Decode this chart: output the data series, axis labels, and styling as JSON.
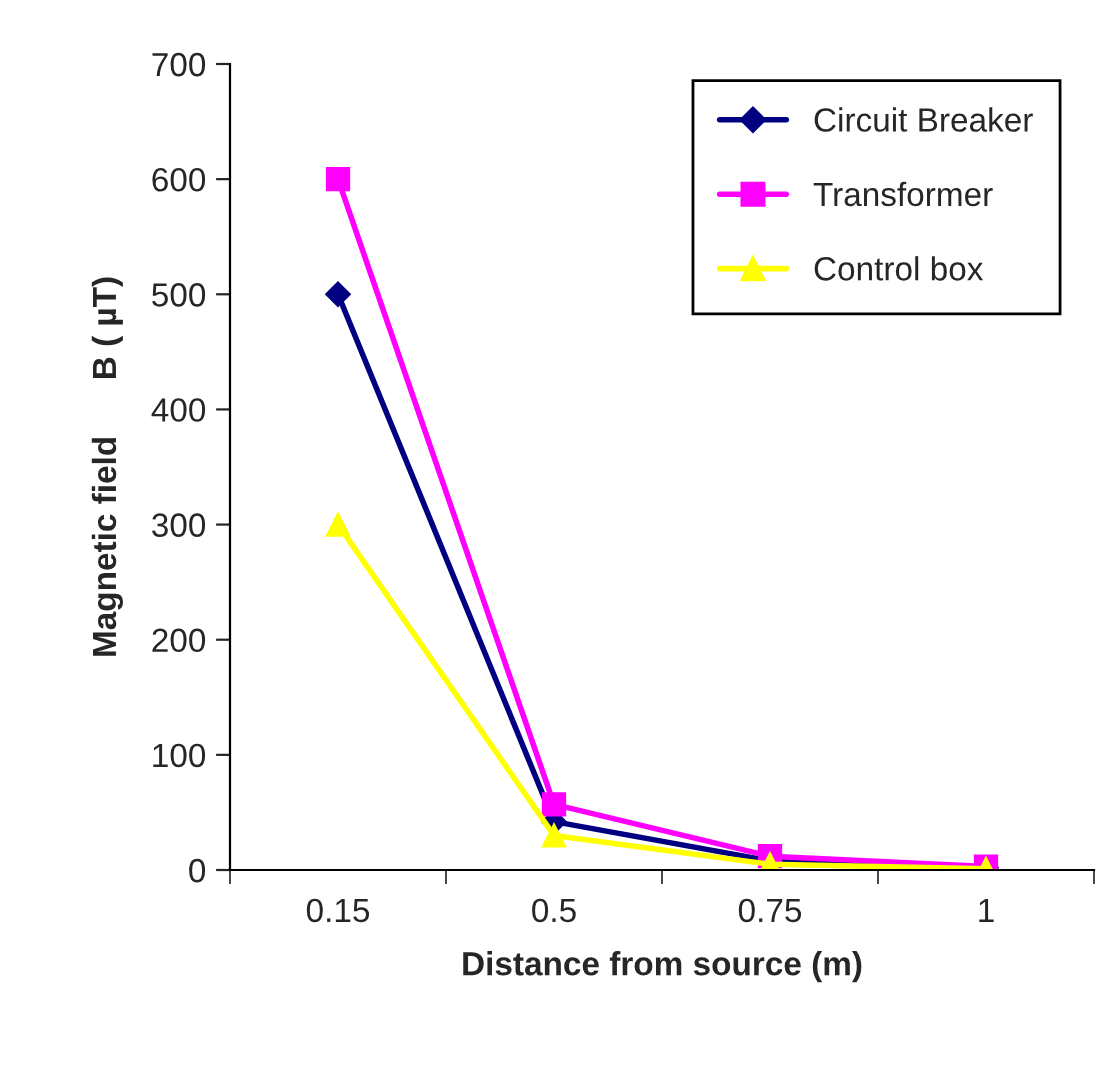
{
  "chart_data": {
    "type": "line",
    "xlabel": "Distance from source (m)",
    "ylabel": "Magnetic field      B ( µT)",
    "categories": [
      "0.15",
      "0.5",
      "0.75",
      "1"
    ],
    "series": [
      {
        "name": "Circuit Breaker",
        "color": "#000080",
        "marker": "diamond",
        "values": [
          500,
          42,
          8,
          2
        ]
      },
      {
        "name": "Transformer",
        "color": "#ff00ff",
        "marker": "square",
        "values": [
          600,
          57,
          12,
          3
        ]
      },
      {
        "name": "Control box",
        "color": "#ffff00",
        "marker": "triangle",
        "values": [
          300,
          30,
          5,
          1
        ]
      }
    ],
    "ylim": [
      0,
      700
    ],
    "yticks": [
      0,
      100,
      200,
      300,
      400,
      500,
      600,
      700
    ],
    "grid": false,
    "legend": "top right"
  }
}
